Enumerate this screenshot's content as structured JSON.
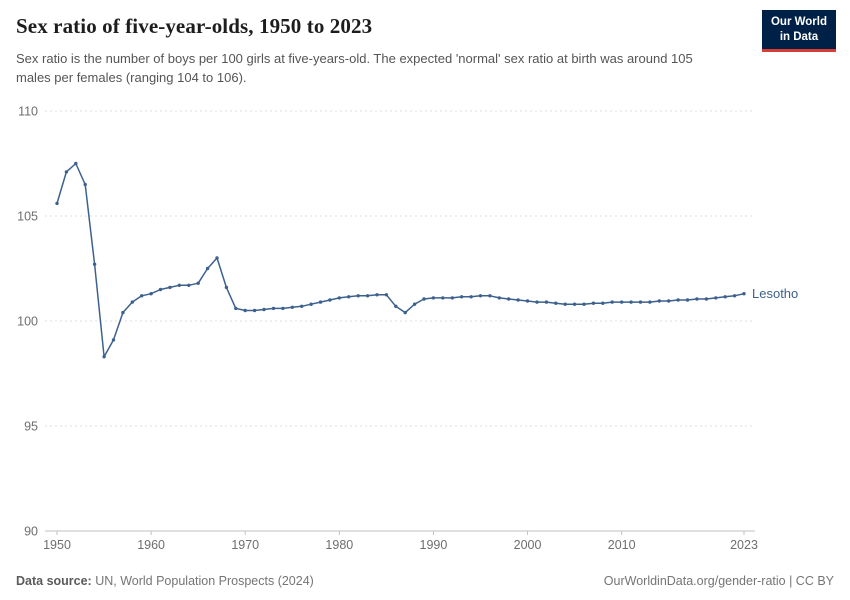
{
  "header": {
    "title": "Sex ratio of five-year-olds, 1950 to 2023",
    "subtitle": "Sex ratio is the number of boys per 100 girls at five-years-old. The expected 'normal' sex ratio at birth was around 105 males per females (ranging 104 to 106).",
    "logo": {
      "line1": "Our World",
      "line2": "in Data"
    }
  },
  "chart_data": {
    "type": "line",
    "title": "Sex ratio of five-year-olds, 1950 to 2023",
    "entity": "Lesotho",
    "line_color": "#3d618e",
    "grid": true,
    "legend_position": "end-of-line",
    "ylim": [
      90,
      110
    ],
    "yticks": [
      90,
      95,
      100,
      105,
      110
    ],
    "xticks": [
      1950,
      1960,
      1970,
      1980,
      1990,
      2000,
      2010,
      2023
    ],
    "x": [
      1950,
      1951,
      1952,
      1953,
      1954,
      1955,
      1956,
      1957,
      1958,
      1959,
      1960,
      1961,
      1962,
      1963,
      1964,
      1965,
      1966,
      1967,
      1968,
      1969,
      1970,
      1971,
      1972,
      1973,
      1974,
      1975,
      1976,
      1977,
      1978,
      1979,
      1980,
      1981,
      1982,
      1983,
      1984,
      1985,
      1986,
      1987,
      1988,
      1989,
      1990,
      1991,
      1992,
      1993,
      1994,
      1995,
      1996,
      1997,
      1998,
      1999,
      2000,
      2001,
      2002,
      2003,
      2004,
      2005,
      2006,
      2007,
      2008,
      2009,
      2010,
      2011,
      2012,
      2013,
      2014,
      2015,
      2016,
      2017,
      2018,
      2019,
      2020,
      2021,
      2022,
      2023
    ],
    "values": [
      105.6,
      107.1,
      107.5,
      106.5,
      102.7,
      98.3,
      99.1,
      100.4,
      100.9,
      101.2,
      101.3,
      101.5,
      101.6,
      101.7,
      101.7,
      101.8,
      102.5,
      103.0,
      101.6,
      100.6,
      100.5,
      100.5,
      100.55,
      100.6,
      100.6,
      100.65,
      100.7,
      100.8,
      100.9,
      101.0,
      101.1,
      101.15,
      101.2,
      101.2,
      101.25,
      101.25,
      100.7,
      100.4,
      100.8,
      101.05,
      101.1,
      101.1,
      101.1,
      101.15,
      101.15,
      101.2,
      101.2,
      101.1,
      101.05,
      101.0,
      100.95,
      100.9,
      100.9,
      100.85,
      100.8,
      100.8,
      100.8,
      100.85,
      100.85,
      100.9,
      100.9,
      100.9,
      100.9,
      100.9,
      100.95,
      100.95,
      101.0,
      101.0,
      101.05,
      101.05,
      101.1,
      101.15,
      101.2,
      101.3
    ]
  },
  "footer": {
    "source_label": "Data source:",
    "source_text": " UN, World Population Prospects (2024)",
    "right_text": "OurWorldinData.org/gender-ratio | CC BY"
  },
  "colors": {
    "series_blue": "#3d618e",
    "logo_navy": "#002147",
    "logo_red": "#d63d34",
    "gridline": "#dedede",
    "axis": "#c2c2c2",
    "tick_text": "#6e6e6e"
  }
}
